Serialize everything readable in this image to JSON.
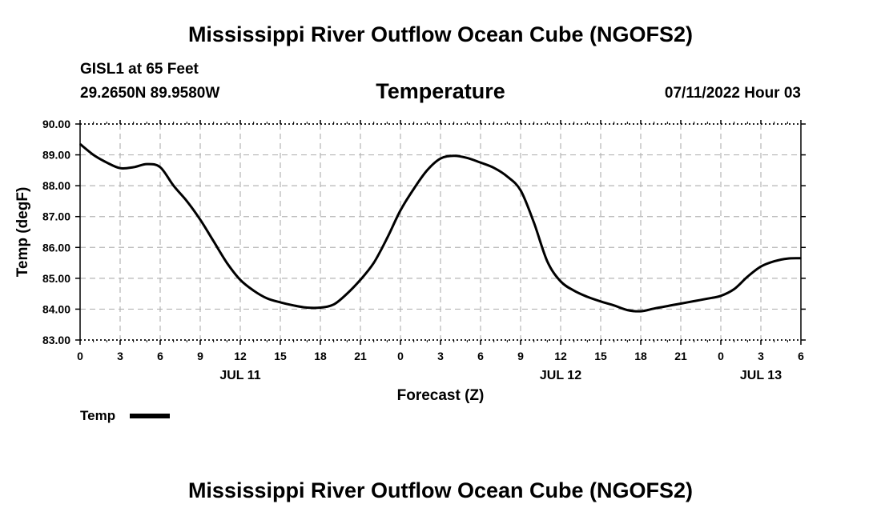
{
  "header": {
    "title": "Mississippi River Outflow Ocean Cube (NGOFS2)",
    "station_line1": "GISL1 at 65 Feet",
    "station_line2": "29.2650N  89.9580W",
    "variable": "Temperature",
    "date": "07/11/2022 Hour 03"
  },
  "legend": {
    "label": "Temp"
  },
  "footer": {
    "title": "Mississippi River Outflow Ocean Cube (NGOFS2)"
  },
  "chart_data": {
    "type": "line",
    "title": "Temperature",
    "xlabel": "Forecast (Z)",
    "ylabel": "Temp (degF)",
    "grid": true,
    "ylim": [
      83.0,
      90.0
    ],
    "xlim": [
      0,
      54
    ],
    "y_ticks": [
      "83.00",
      "84.00",
      "85.00",
      "86.00",
      "87.00",
      "88.00",
      "89.00",
      "90.00"
    ],
    "x_tick_labels": [
      "0",
      "3",
      "6",
      "9",
      "12",
      "15",
      "18",
      "21",
      "0",
      "3",
      "6",
      "9",
      "12",
      "15",
      "18",
      "21",
      "0",
      "3",
      "6"
    ],
    "date_labels": [
      {
        "hour": 12,
        "label": "JUL 11"
      },
      {
        "hour": 36,
        "label": "JUL 12"
      },
      {
        "hour": 51,
        "label": "JUL 13"
      }
    ],
    "series": [
      {
        "name": "Temp",
        "x": [
          0,
          1,
          2,
          3,
          4,
          5,
          6,
          7,
          8,
          9,
          10,
          11,
          12,
          13,
          14,
          15,
          16,
          17,
          18,
          19,
          20,
          21,
          22,
          23,
          24,
          25,
          26,
          27,
          28,
          29,
          30,
          31,
          32,
          33,
          34,
          35,
          36,
          37,
          38,
          39,
          40,
          41,
          42,
          43,
          44,
          45,
          46,
          47,
          48,
          49,
          50,
          51,
          52,
          53,
          54
        ],
        "values": [
          89.35,
          89.0,
          88.75,
          88.57,
          88.6,
          88.7,
          88.6,
          88.0,
          87.5,
          86.9,
          86.2,
          85.5,
          84.95,
          84.6,
          84.35,
          84.22,
          84.12,
          84.05,
          84.05,
          84.15,
          84.5,
          84.95,
          85.5,
          86.3,
          87.2,
          87.9,
          88.5,
          88.88,
          88.97,
          88.9,
          88.75,
          88.58,
          88.3,
          87.85,
          86.8,
          85.55,
          84.9,
          84.6,
          84.4,
          84.25,
          84.12,
          83.97,
          83.93,
          84.02,
          84.1,
          84.18,
          84.26,
          84.34,
          84.43,
          84.65,
          85.05,
          85.38,
          85.55,
          85.64,
          85.65
        ]
      }
    ]
  }
}
